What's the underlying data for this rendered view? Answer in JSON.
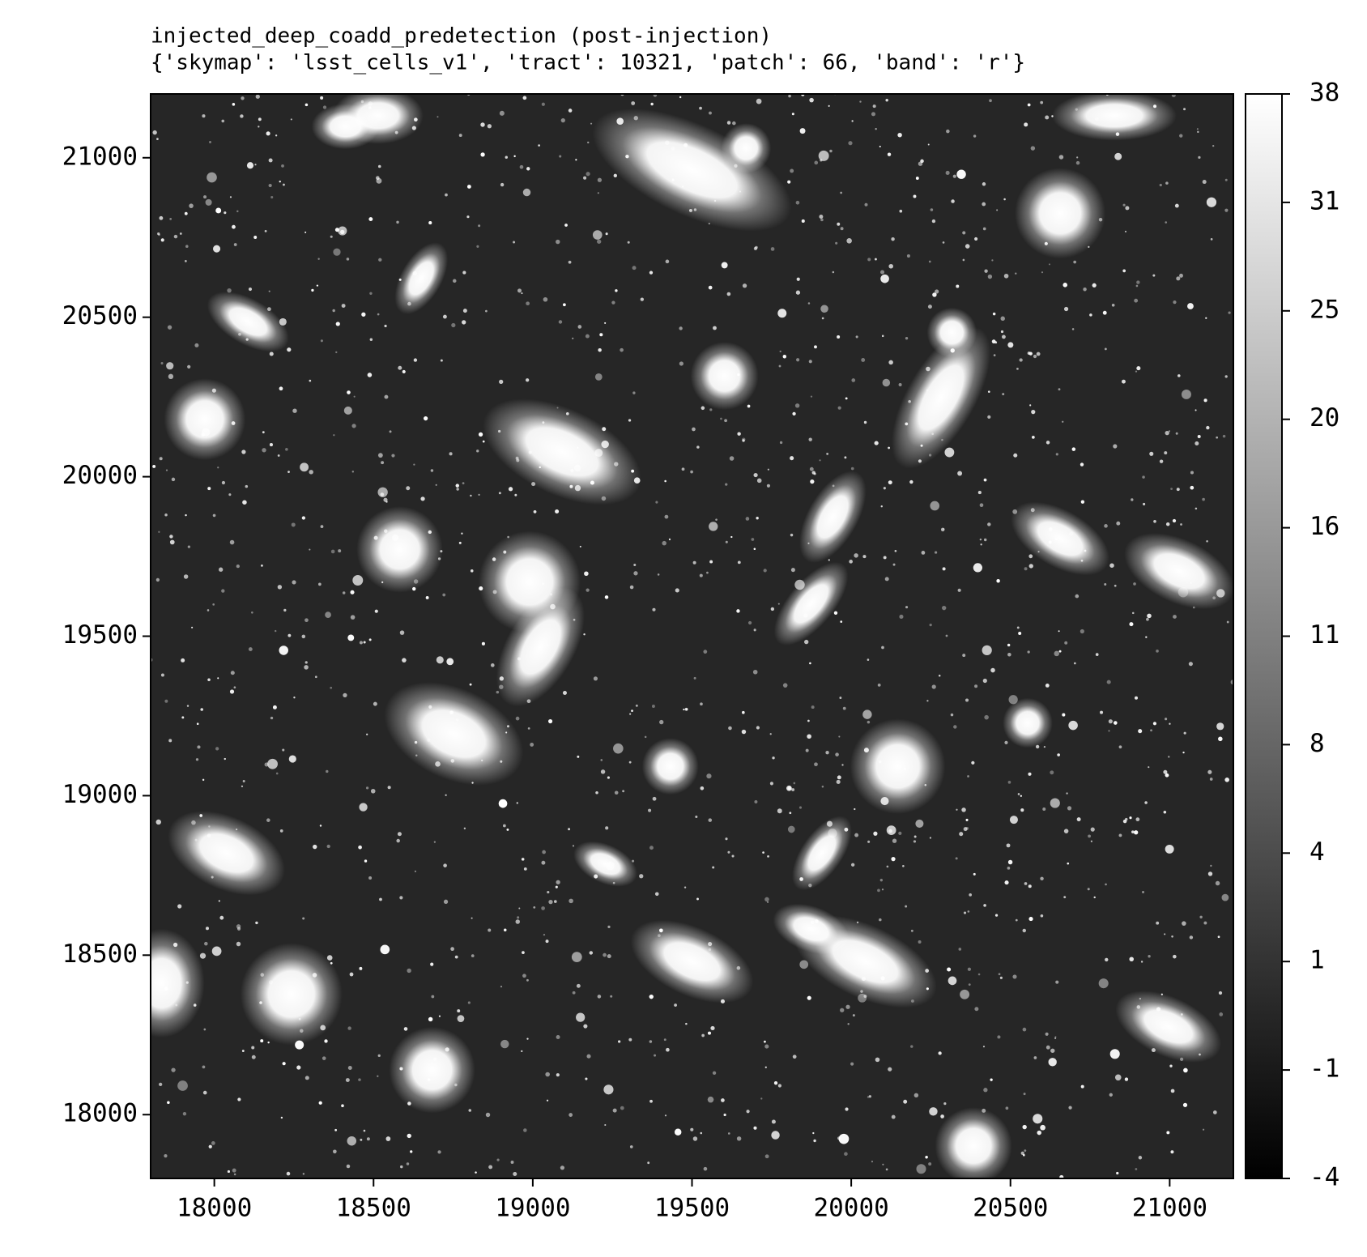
{
  "chart_data": {
    "type": "image",
    "title": "injected_deep_coadd_predetection (post-injection)",
    "subtitle": "{'skymap': 'lsst_cells_v1', 'tract': 10321, 'patch': 66, 'band': 'r'}",
    "xlim": [
      17800,
      21200
    ],
    "xticks": [
      18000,
      18500,
      19000,
      19500,
      20000,
      20500,
      21000
    ],
    "ylim": [
      17800,
      21200
    ],
    "yticks": [
      18000,
      18500,
      19000,
      19500,
      20000,
      20500,
      21000
    ],
    "colormap": "gray",
    "colorbar_ticks": [
      -4,
      -1,
      1,
      4,
      8,
      11,
      16,
      20,
      25,
      31,
      38
    ]
  }
}
